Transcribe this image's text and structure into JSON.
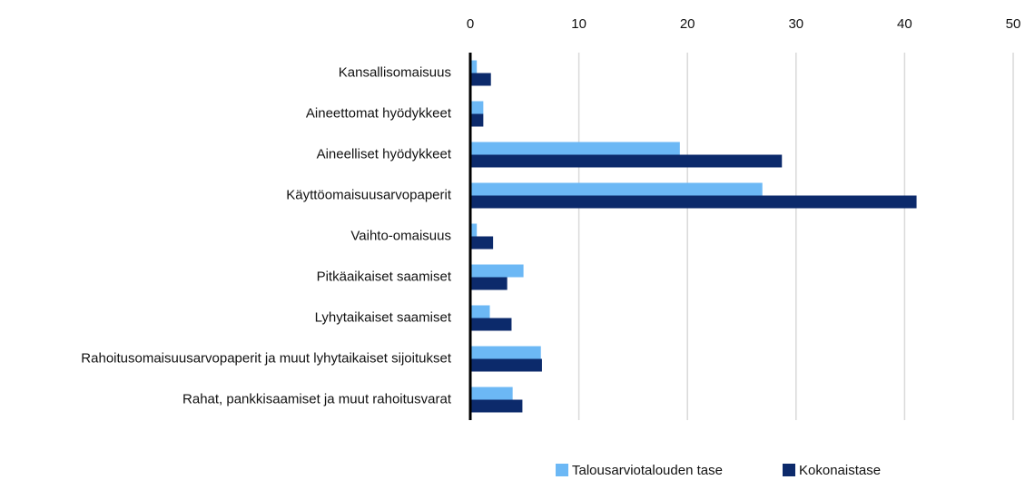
{
  "chart_data": {
    "type": "hbar",
    "categories": [
      "Kansallisomaisuus",
      "Aineettomat hyödykkeet",
      "Aineelliset hyödykkeet",
      "Käyttöomaisuusarvopaperit",
      "Vaihto-omaisuus",
      "Pitkäaikaiset saamiset",
      "Lyhytaikaiset saamiset",
      "Rahoitusomaisuusarvopaperit ja muut lyhytaikaiset sijoitukset",
      "Rahat, pankkisaamiset ja muut rahoitusvarat"
    ],
    "series": [
      {
        "name": "Talousarviotalouden tase",
        "color": "#6cb8f5",
        "values": [
          0.6,
          1.2,
          19.3,
          26.9,
          0.6,
          4.9,
          1.8,
          6.5,
          3.9
        ]
      },
      {
        "name": "Kokonaistase",
        "color": "#0c2a6b",
        "values": [
          1.9,
          1.2,
          28.7,
          41.1,
          2.1,
          3.4,
          3.8,
          6.6,
          4.8
        ]
      }
    ],
    "xlim": [
      0,
      50
    ],
    "xticks": [
      0,
      10,
      20,
      30,
      40,
      50
    ],
    "grid": true,
    "legend": "bottom-right"
  }
}
